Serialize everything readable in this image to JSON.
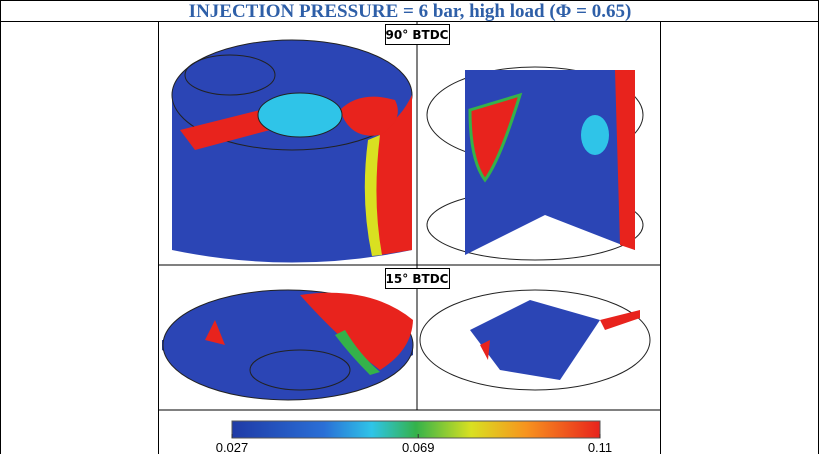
{
  "header": {
    "title": "INJECTION PRESSURE = 6 bar, high load (Φ = 0.65)"
  },
  "panels": [
    {
      "label": "90° BTDC"
    },
    {
      "label": "15° BTDC"
    }
  ],
  "colorbar": {
    "ticks": [
      0.027,
      0.069,
      0.11
    ]
  }
}
